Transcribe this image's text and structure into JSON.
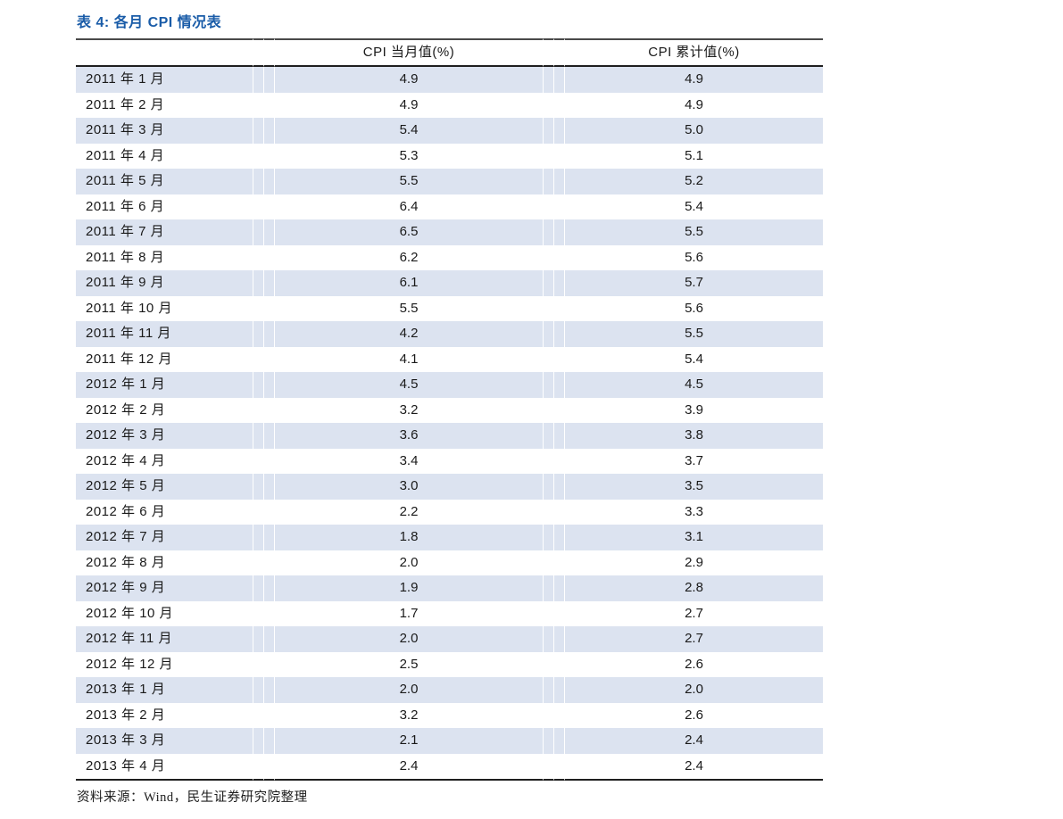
{
  "page": {
    "title": "表 4: 各月 CPI 情况表",
    "source_note": "资料来源：Wind，民生证券研究院整理"
  },
  "colors": {
    "title_blue": "#1a5ca8",
    "row_stripe": "#dce3f0",
    "rule_dark": "#1f1f1f"
  },
  "table": {
    "columns": [
      "",
      "CPI 当月值(%)",
      "CPI 累计值(%)"
    ],
    "rows": [
      {
        "month": "2011 年 1 月",
        "cpi_month": "4.9",
        "cpi_cum": "4.9"
      },
      {
        "month": "2011 年 2 月",
        "cpi_month": "4.9",
        "cpi_cum": "4.9"
      },
      {
        "month": "2011 年 3 月",
        "cpi_month": "5.4",
        "cpi_cum": "5.0"
      },
      {
        "month": "2011 年 4 月",
        "cpi_month": "5.3",
        "cpi_cum": "5.1"
      },
      {
        "month": "2011 年 5 月",
        "cpi_month": "5.5",
        "cpi_cum": "5.2"
      },
      {
        "month": "2011 年 6 月",
        "cpi_month": "6.4",
        "cpi_cum": "5.4"
      },
      {
        "month": "2011 年 7 月",
        "cpi_month": "6.5",
        "cpi_cum": "5.5"
      },
      {
        "month": "2011 年 8 月",
        "cpi_month": "6.2",
        "cpi_cum": "5.6"
      },
      {
        "month": "2011 年 9 月",
        "cpi_month": "6.1",
        "cpi_cum": "5.7"
      },
      {
        "month": "2011 年 10 月",
        "cpi_month": "5.5",
        "cpi_cum": "5.6"
      },
      {
        "month": "2011 年 11 月",
        "cpi_month": "4.2",
        "cpi_cum": "5.5"
      },
      {
        "month": "2011 年 12 月",
        "cpi_month": "4.1",
        "cpi_cum": "5.4"
      },
      {
        "month": "2012 年 1 月",
        "cpi_month": "4.5",
        "cpi_cum": "4.5"
      },
      {
        "month": "2012 年 2 月",
        "cpi_month": "3.2",
        "cpi_cum": "3.9"
      },
      {
        "month": "2012 年 3 月",
        "cpi_month": "3.6",
        "cpi_cum": "3.8"
      },
      {
        "month": "2012 年 4 月",
        "cpi_month": "3.4",
        "cpi_cum": "3.7"
      },
      {
        "month": "2012 年 5 月",
        "cpi_month": "3.0",
        "cpi_cum": "3.5"
      },
      {
        "month": "2012 年 6 月",
        "cpi_month": "2.2",
        "cpi_cum": "3.3"
      },
      {
        "month": "2012 年 7 月",
        "cpi_month": "1.8",
        "cpi_cum": "3.1"
      },
      {
        "month": "2012 年 8 月",
        "cpi_month": "2.0",
        "cpi_cum": "2.9"
      },
      {
        "month": "2012 年 9 月",
        "cpi_month": "1.9",
        "cpi_cum": "2.8"
      },
      {
        "month": "2012 年 10 月",
        "cpi_month": "1.7",
        "cpi_cum": "2.7"
      },
      {
        "month": "2012 年 11 月",
        "cpi_month": "2.0",
        "cpi_cum": "2.7"
      },
      {
        "month": "2012 年 12 月",
        "cpi_month": "2.5",
        "cpi_cum": "2.6"
      },
      {
        "month": "2013 年 1 月",
        "cpi_month": "2.0",
        "cpi_cum": "2.0"
      },
      {
        "month": "2013 年 2 月",
        "cpi_month": "3.2",
        "cpi_cum": "2.6"
      },
      {
        "month": "2013 年 3 月",
        "cpi_month": "2.1",
        "cpi_cum": "2.4"
      },
      {
        "month": "2013 年 4 月",
        "cpi_month": "2.4",
        "cpi_cum": "2.4"
      }
    ]
  }
}
